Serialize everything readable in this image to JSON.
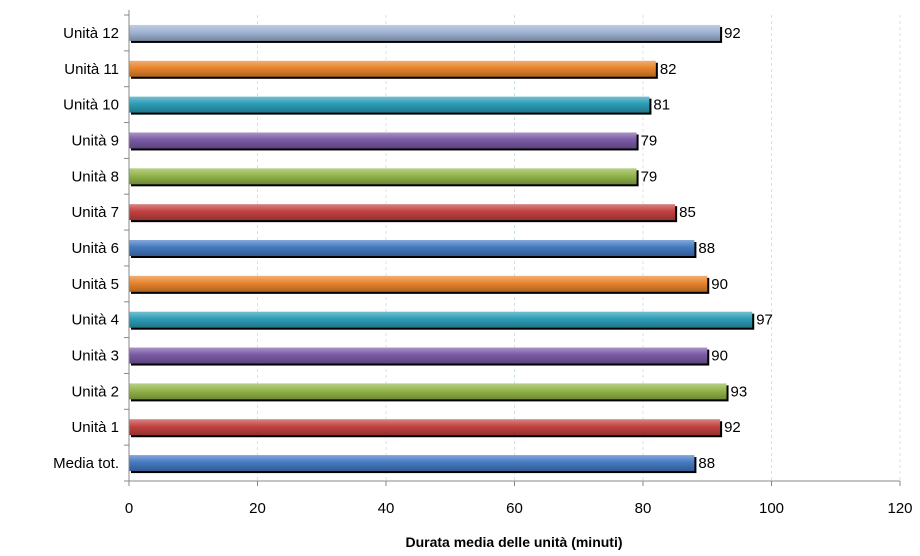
{
  "chart_data": {
    "type": "bar",
    "orientation": "horizontal",
    "title": "",
    "xlabel": "Durata media delle unità (minuti)",
    "ylabel": "",
    "xlim": [
      0,
      120
    ],
    "xticks": [
      0,
      20,
      40,
      60,
      80,
      100,
      120
    ],
    "grid": "vertical-dashed",
    "legend": "none",
    "categories": [
      "Unità 12",
      "Unità 11",
      "Unità 10",
      "Unità 9",
      "Unità 8",
      "Unità 7",
      "Unità 6",
      "Unità 5",
      "Unità 4",
      "Unità 3",
      "Unità 2",
      "Unità 1",
      "Media tot."
    ],
    "values": [
      92,
      82,
      81,
      79,
      79,
      85,
      88,
      90,
      97,
      90,
      93,
      92,
      88
    ],
    "colors": [
      "#9fb3d3",
      "#e8842c",
      "#2c9db7",
      "#7a5aa6",
      "#93b54a",
      "#c24140",
      "#4479c1",
      "#e8842c",
      "#2c9db7",
      "#7a5aa6",
      "#93b54a",
      "#c24140",
      "#4479c1"
    ]
  }
}
